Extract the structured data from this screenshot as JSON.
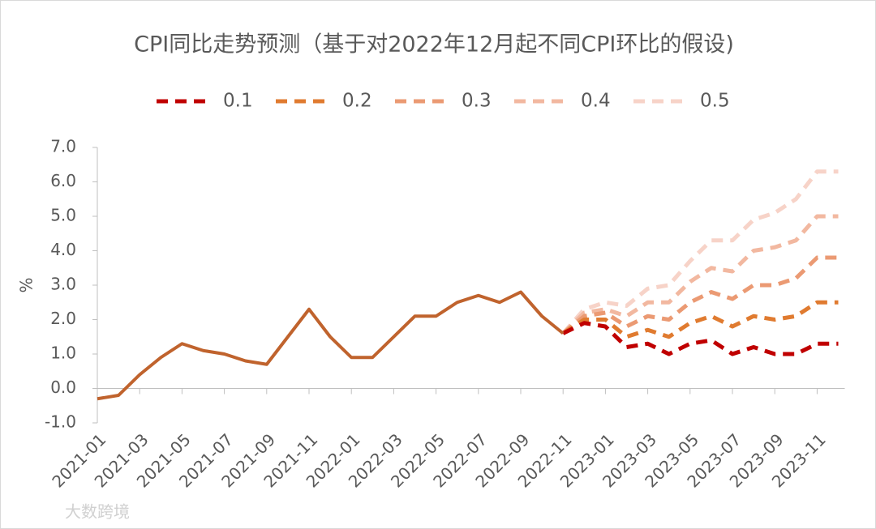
{
  "chart_data": {
    "type": "line",
    "title": "CPI同比走势预测（基于对2022年12月起不同CPI环比的假设)",
    "y_label": "%",
    "watermark": "大数跨境",
    "categories": [
      "2021-01",
      null,
      "2021-03",
      null,
      "2021-05",
      null,
      "2021-07",
      null,
      "2021-09",
      null,
      "2021-11",
      null,
      "2022-01",
      null,
      "2022-03",
      null,
      "2022-05",
      null,
      "2022-07",
      null,
      "2022-09",
      null,
      "2022-11",
      null,
      "2023-01",
      null,
      "2023-03",
      null,
      "2023-05",
      null,
      "2023-07",
      null,
      "2023-09",
      null,
      "2023-11",
      null
    ],
    "series": [
      {
        "color": "#c0632d",
        "dashed": false,
        "values": [
          -0.3,
          -0.2,
          0.4,
          0.9,
          1.3,
          1.1,
          1.0,
          0.8,
          0.7,
          1.5,
          2.3,
          1.5,
          0.9,
          0.9,
          1.5,
          2.1,
          2.1,
          2.5,
          2.7,
          2.5,
          2.8,
          2.1,
          1.6,
          null,
          null,
          null,
          null,
          null,
          null,
          null,
          null,
          null,
          null,
          null,
          null,
          null
        ]
      },
      {
        "name": "0.1",
        "color": "#c00000",
        "dashed": true,
        "values": [
          null,
          null,
          null,
          null,
          null,
          null,
          null,
          null,
          null,
          null,
          null,
          null,
          null,
          null,
          null,
          null,
          null,
          null,
          null,
          null,
          null,
          null,
          1.6,
          1.9,
          1.8,
          1.2,
          1.3,
          1.0,
          1.3,
          1.4,
          1.0,
          1.2,
          1.0,
          1.0,
          1.3,
          1.3
        ]
      },
      {
        "name": "0.2",
        "color": "#e07b30",
        "dashed": true,
        "values": [
          null,
          null,
          null,
          null,
          null,
          null,
          null,
          null,
          null,
          null,
          null,
          null,
          null,
          null,
          null,
          null,
          null,
          null,
          null,
          null,
          null,
          null,
          1.6,
          2.0,
          2.0,
          1.5,
          1.7,
          1.5,
          1.9,
          2.1,
          1.8,
          2.1,
          2.0,
          2.1,
          2.5,
          2.5
        ]
      },
      {
        "name": "0.3",
        "color": "#eb9a73",
        "dashed": true,
        "values": [
          null,
          null,
          null,
          null,
          null,
          null,
          null,
          null,
          null,
          null,
          null,
          null,
          null,
          null,
          null,
          null,
          null,
          null,
          null,
          null,
          null,
          null,
          1.6,
          2.1,
          2.2,
          1.8,
          2.1,
          2.0,
          2.5,
          2.8,
          2.6,
          3.0,
          3.0,
          3.2,
          3.8,
          3.8
        ]
      },
      {
        "name": "0.4",
        "color": "#f2b8a0",
        "dashed": true,
        "values": [
          null,
          null,
          null,
          null,
          null,
          null,
          null,
          null,
          null,
          null,
          null,
          null,
          null,
          null,
          null,
          null,
          null,
          null,
          null,
          null,
          null,
          null,
          1.6,
          2.2,
          2.3,
          2.1,
          2.5,
          2.5,
          3.1,
          3.5,
          3.4,
          4.0,
          4.1,
          4.3,
          5.0,
          5.0
        ]
      },
      {
        "name": "0.5",
        "color": "#f7d3c8",
        "dashed": true,
        "values": [
          null,
          null,
          null,
          null,
          null,
          null,
          null,
          null,
          null,
          null,
          null,
          null,
          null,
          null,
          null,
          null,
          null,
          null,
          null,
          null,
          null,
          null,
          1.6,
          2.3,
          2.5,
          2.4,
          2.9,
          3.0,
          3.7,
          4.3,
          4.3,
          4.9,
          5.1,
          5.5,
          6.3,
          6.3
        ]
      }
    ],
    "ylim": [
      -1.0,
      7.0
    ],
    "yticks": [
      {
        "value": -1.0,
        "label": "-1.0"
      },
      {
        "value": 0.0,
        "label": "0.0"
      },
      {
        "value": 1.0,
        "label": "1.0"
      },
      {
        "value": 2.0,
        "label": "2.0"
      },
      {
        "value": 3.0,
        "label": "3.0"
      },
      {
        "value": 4.0,
        "label": "4.0"
      },
      {
        "value": 5.0,
        "label": "5.0"
      },
      {
        "value": 6.0,
        "label": "6.0"
      },
      {
        "value": 7.0,
        "label": "7.0"
      }
    ],
    "grid": false,
    "legend": "top"
  }
}
